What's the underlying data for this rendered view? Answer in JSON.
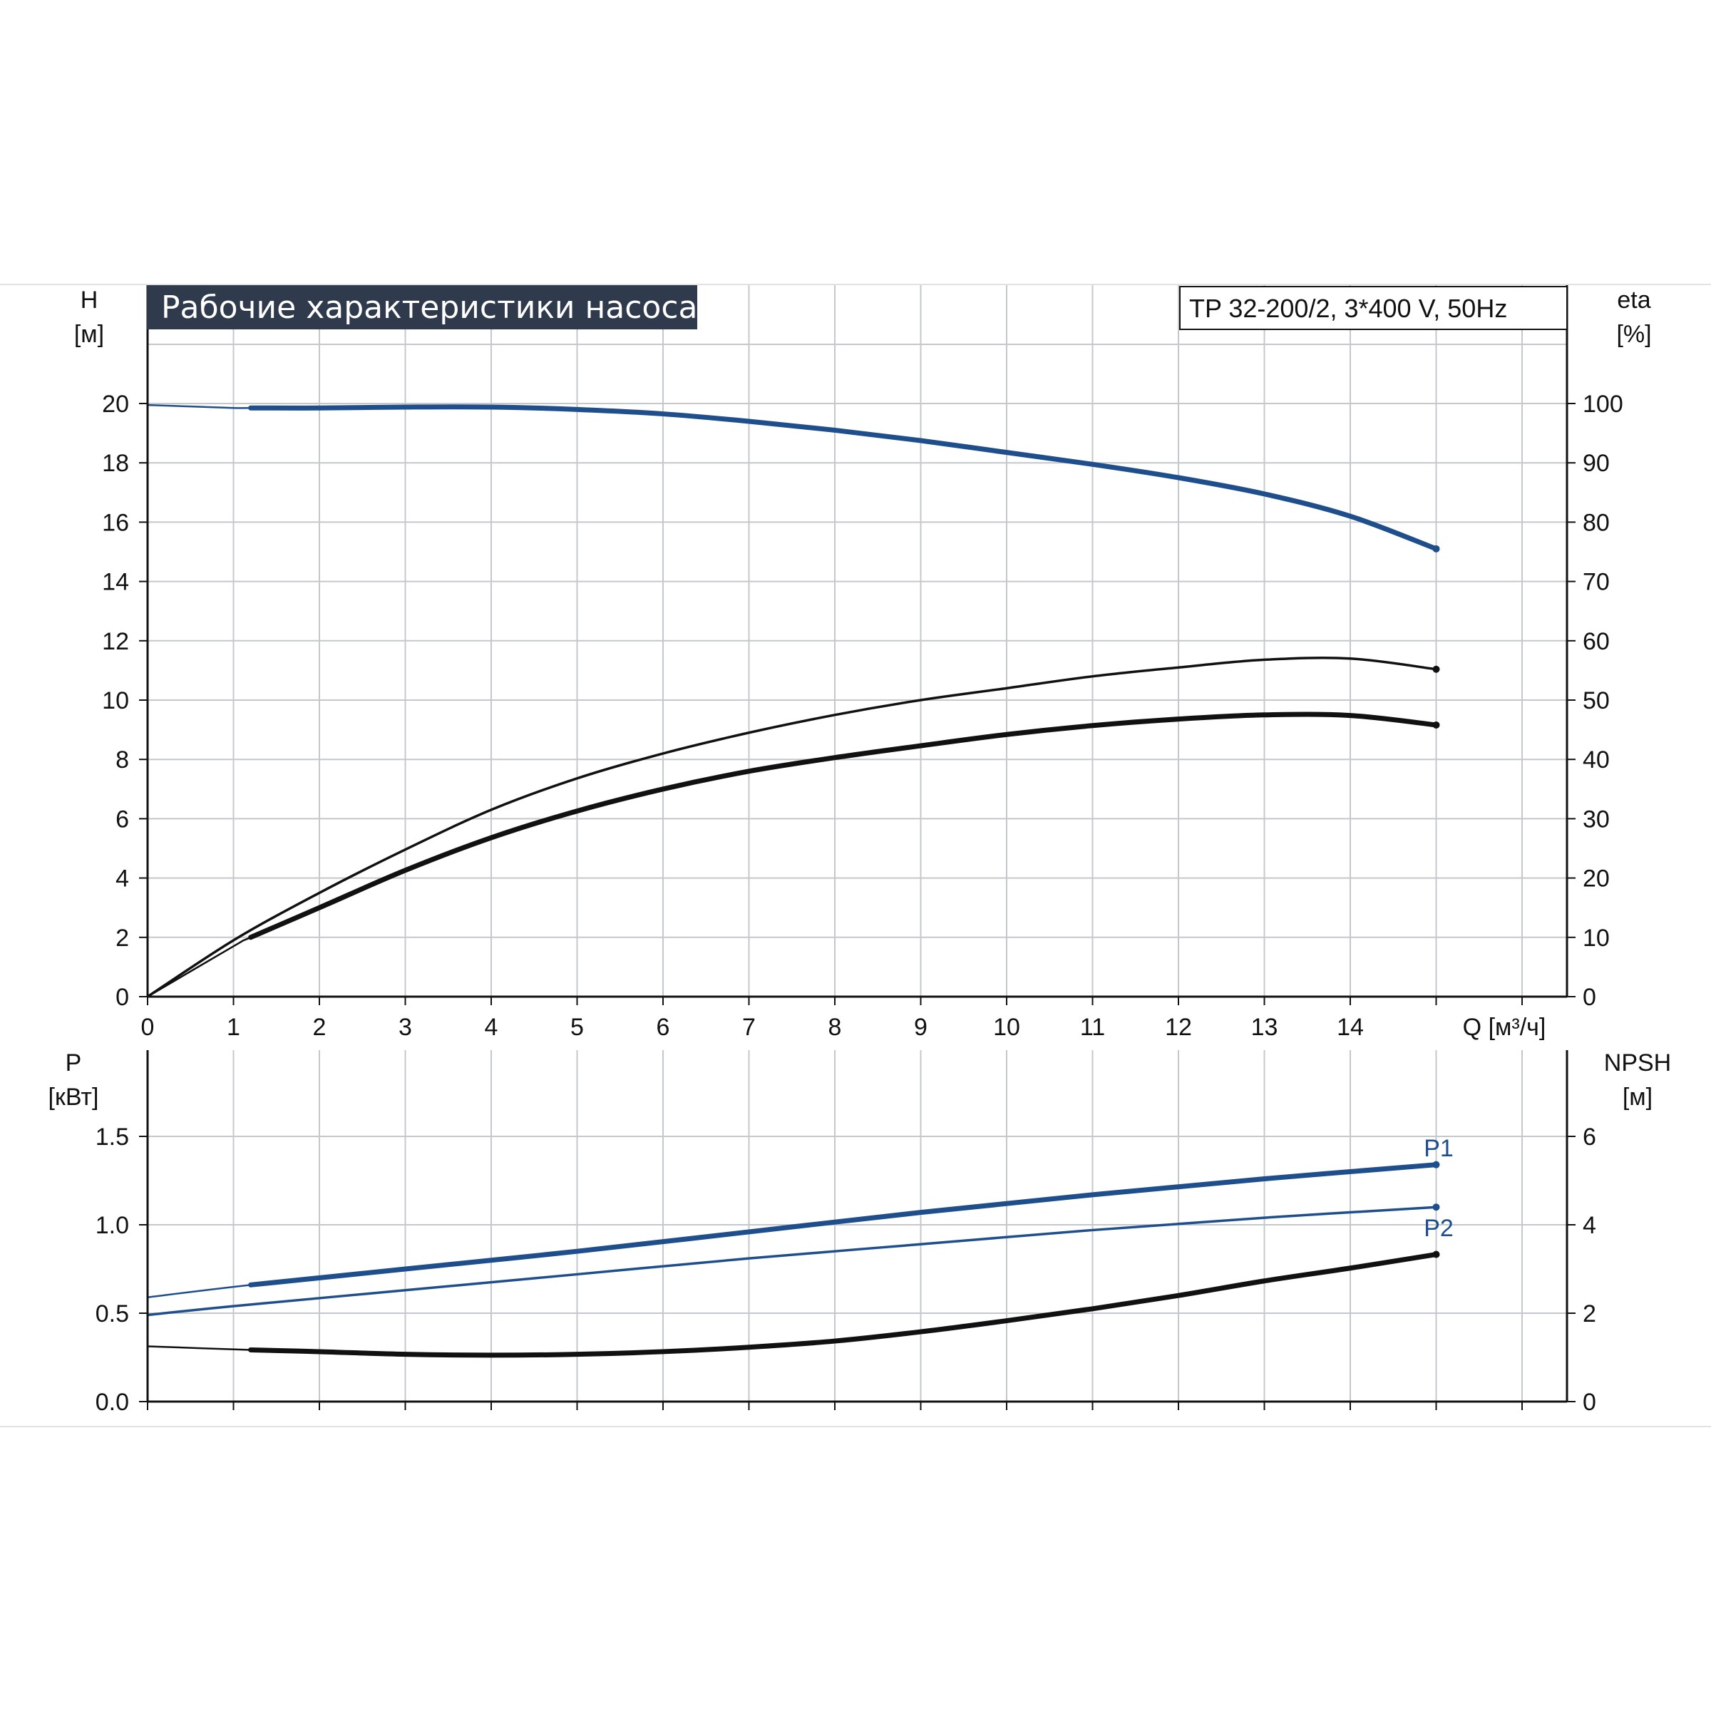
{
  "title": "Рабочие характеристики насоса",
  "model": "TP 32-200/2, 3*400 V, 50Hz",
  "colors": {
    "blue": "#1f4e8c",
    "black": "#111111",
    "title_bg": "#2f3b4c",
    "grid": "#c4c8cc"
  },
  "chart_data": [
    {
      "type": "line",
      "x_axis": {
        "label": "Q [м³/ч]",
        "ticks": [
          "0",
          "1",
          "2",
          "3",
          "4",
          "5",
          "6",
          "7",
          "8",
          "9",
          "10",
          "11",
          "12",
          "13",
          "14"
        ],
        "range": [
          0,
          16.5
        ]
      },
      "y_left": {
        "label_top": "H",
        "label_unit": "[м]",
        "ticks": [
          "0",
          "2",
          "4",
          "6",
          "8",
          "10",
          "12",
          "14",
          "16",
          "18",
          "20"
        ],
        "range": [
          0,
          22
        ]
      },
      "y_right": {
        "label_top": "eta",
        "label_unit": "[%]",
        "ticks": [
          "0",
          "10",
          "20",
          "30",
          "40",
          "50",
          "60",
          "70",
          "80",
          "90",
          "100"
        ],
        "range": [
          0,
          110
        ]
      },
      "grid": true,
      "series": [
        {
          "axis": "left",
          "color": "blue",
          "width": "thick",
          "start_x": 1.2,
          "x": [
            0,
            0.5,
            1,
            1.2,
            2,
            3,
            4,
            5,
            6,
            7,
            8,
            9,
            10,
            11,
            12,
            13,
            14,
            15
          ],
          "y": [
            19.95,
            19.9,
            19.85,
            19.85,
            19.85,
            19.88,
            19.88,
            19.8,
            19.65,
            19.4,
            19.1,
            18.75,
            18.35,
            17.95,
            17.5,
            16.95,
            16.2,
            15.1
          ]
        },
        {
          "axis": "right",
          "color": "black",
          "width": "thin",
          "x": [
            0,
            1,
            2,
            3,
            4,
            5,
            6,
            7,
            8,
            9,
            10,
            11,
            12,
            13,
            14,
            15
          ],
          "y": [
            0,
            9.5,
            17.5,
            24.8,
            31.5,
            36.8,
            41,
            44.5,
            47.5,
            50,
            52,
            54,
            55.5,
            56.8,
            57,
            55.2
          ]
        },
        {
          "axis": "right",
          "color": "black",
          "width": "thick",
          "start_x": 1.2,
          "x": [
            0,
            1,
            1.2,
            2,
            3,
            4,
            5,
            6,
            7,
            8,
            9,
            10,
            11,
            12,
            13,
            14,
            15
          ],
          "y": [
            0,
            8.5,
            10,
            15,
            21.3,
            26.8,
            31.3,
            35,
            38,
            40.3,
            42.3,
            44.2,
            45.7,
            46.8,
            47.5,
            47.4,
            45.8
          ]
        }
      ]
    },
    {
      "type": "line",
      "x_axis": {
        "range": [
          0,
          16.5
        ]
      },
      "y_left": {
        "label_top": "P",
        "label_unit": "[кВт]",
        "ticks": [
          "0.0",
          "0.5",
          "1.0",
          "1.5"
        ],
        "range": [
          0,
          2
        ]
      },
      "y_right": {
        "label_top": "NPSH",
        "label_unit": "[м]",
        "ticks": [
          "0",
          "2",
          "4",
          "6"
        ],
        "range": [
          0,
          8
        ]
      },
      "grid": true,
      "series": [
        {
          "name": "P1",
          "axis": "left",
          "color": "blue",
          "width": "thick",
          "start_x": 1.2,
          "x": [
            0,
            1.2,
            3,
            5,
            7,
            9,
            11,
            13,
            15
          ],
          "y": [
            0.59,
            0.66,
            0.75,
            0.85,
            0.96,
            1.07,
            1.17,
            1.26,
            1.34
          ]
        },
        {
          "name": "P2",
          "axis": "left",
          "color": "blue",
          "width": "thin",
          "x": [
            0,
            1,
            3,
            5,
            7,
            9,
            11,
            13,
            15
          ],
          "y": [
            0.49,
            0.54,
            0.63,
            0.72,
            0.81,
            0.89,
            0.97,
            1.04,
            1.1
          ]
        },
        {
          "axis": "right",
          "color": "black",
          "width": "thick",
          "start_x": 1.2,
          "x": [
            0,
            1.2,
            2,
            3,
            4,
            5,
            6,
            7,
            8,
            9,
            10,
            11,
            12,
            13,
            14,
            15
          ],
          "y": [
            1.25,
            1.17,
            1.13,
            1.07,
            1.05,
            1.07,
            1.13,
            1.23,
            1.37,
            1.58,
            1.83,
            2.1,
            2.4,
            2.73,
            3.02,
            3.33
          ]
        }
      ]
    }
  ]
}
